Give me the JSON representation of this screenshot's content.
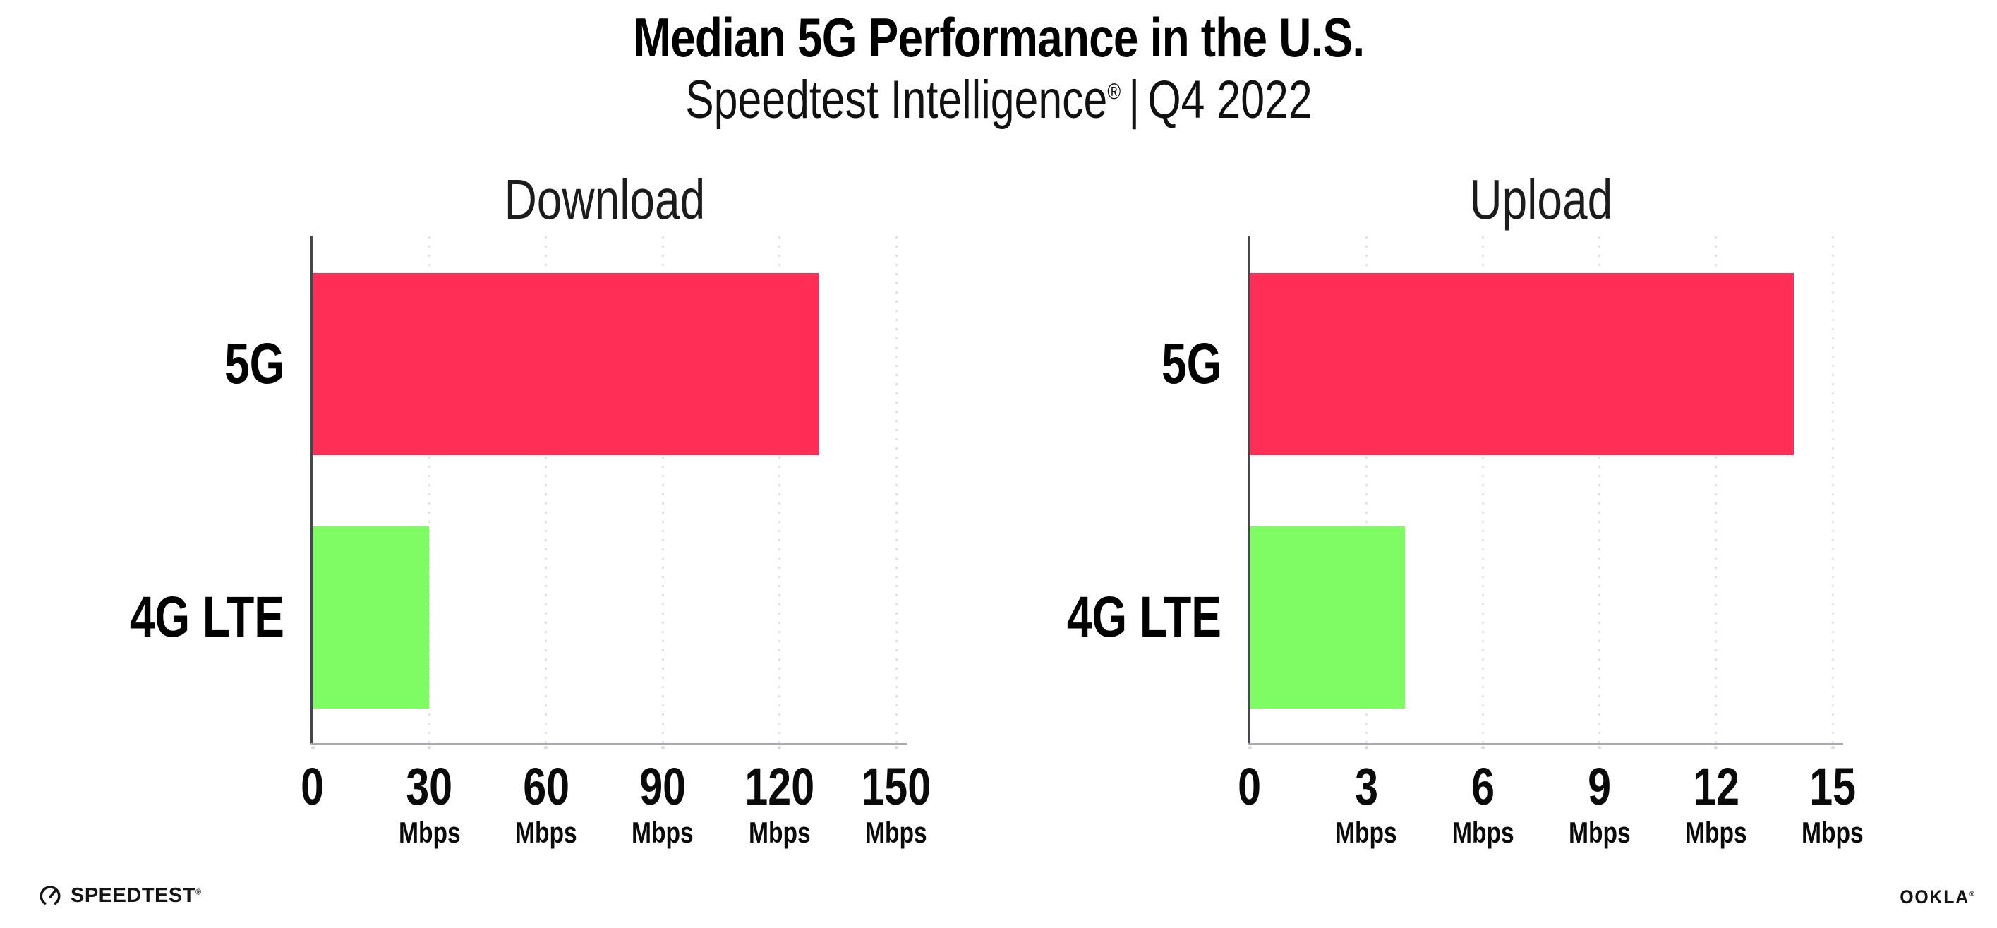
{
  "header": {
    "title": "Median 5G Performance in the U.S.",
    "subtitle": {
      "brand": "Speedtest Intelligence",
      "trademark": "®",
      "divider": "|",
      "period": "Q4 2022"
    }
  },
  "chart_data": [
    {
      "type": "bar",
      "orientation": "horizontal",
      "title": "Download",
      "categories": [
        "5G",
        "4G LTE"
      ],
      "values": [
        130,
        30
      ],
      "unit": "Mbps",
      "xlim": [
        0,
        150
      ],
      "xticks": [
        0,
        30,
        60,
        90,
        120,
        150
      ],
      "grid": "vertical-dotted",
      "legend": "none",
      "bar_colors": [
        "#ff2e56",
        "#7ffc63"
      ]
    },
    {
      "type": "bar",
      "orientation": "horizontal",
      "title": "Upload",
      "categories": [
        "5G",
        "4G LTE"
      ],
      "values": [
        14,
        4
      ],
      "unit": "Mbps",
      "xlim": [
        0,
        15
      ],
      "xticks": [
        0,
        3,
        6,
        9,
        12,
        15
      ],
      "grid": "vertical-dotted",
      "legend": "none",
      "bar_colors": [
        "#ff2e56",
        "#7ffc63"
      ]
    }
  ],
  "footer": {
    "speedtest": {
      "icon": "speedtest-gauge-icon",
      "label": "SPEEDTEST",
      "trademark": "®"
    },
    "ookla": {
      "label": "OOKLA",
      "trademark": "®"
    }
  },
  "colors": {
    "bar_5g": "#ff2e56",
    "bar_4g_lte": "#7ffc63",
    "grid_dot": "#e0e1ec",
    "y_axis": "#46464e",
    "x_axis": "#a9a9b0",
    "text": "#0d0d0d"
  }
}
